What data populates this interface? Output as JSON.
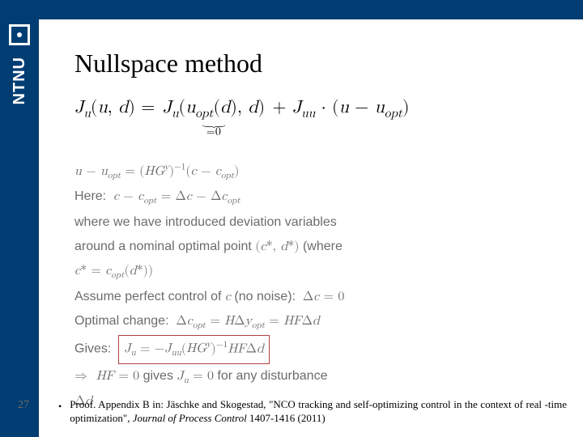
{
  "sidebar": {
    "org_text": "NTNU",
    "background_color": "#003d73",
    "text_color": "#ffffff"
  },
  "topbar": {
    "background_color": "#003d73"
  },
  "slide": {
    "title": "Nullspace method",
    "title_fontsize": 32,
    "title_color": "#000000",
    "page_number": "27"
  },
  "equations": {
    "main": {
      "lhs": "J",
      "lhs_sub": "u",
      "lhs_args": "(u, d) = ",
      "under_term": "J_u(u_opt(d), d)",
      "under_label": "=0",
      "rhs_plus": " + J",
      "rhs_sub": "uu",
      "rhs_tail": " · (u − u",
      "rhs_tail_sub": "opt",
      "rhs_close": ")"
    },
    "line1": "u − u_opt = (HGʸ)⁻¹(c − c_opt)",
    "line2": "Here:  c − c_opt = Δc − Δc_opt",
    "line3a": "where we have introduced deviation variables",
    "line3b": "around a nominal optimal point (c*, d*) (where",
    "line3c": "c* = c_opt(d*))",
    "line4": "Assume perfect control of c (no noise):  Δc = 0",
    "line5": "Optimal change:  Δc_opt = HΔy_opt = HFΔd",
    "line6_label": "Gives: ",
    "line6_box": "J_u = −J_uu(HGʸ)⁻¹HFΔd",
    "line7": "⇒  HF = 0 gives J_u = 0 for any disturbance",
    "line8": "Δd"
  },
  "styling": {
    "math_gray": "#6c6c6c",
    "box_border": "#b04040",
    "gray_fontsize": 16,
    "eq_fontsize": 22
  },
  "footer": {
    "bullet": "•",
    "proof_prefix": "Proof. Appendix B in:   Jäschke and Skogestad, \"NCO tracking and self-optimizing control in the context of real -time optimization\", ",
    "proof_journal": "Journal of Process Control",
    "proof_suffix": " 1407-1416 (2011)"
  }
}
